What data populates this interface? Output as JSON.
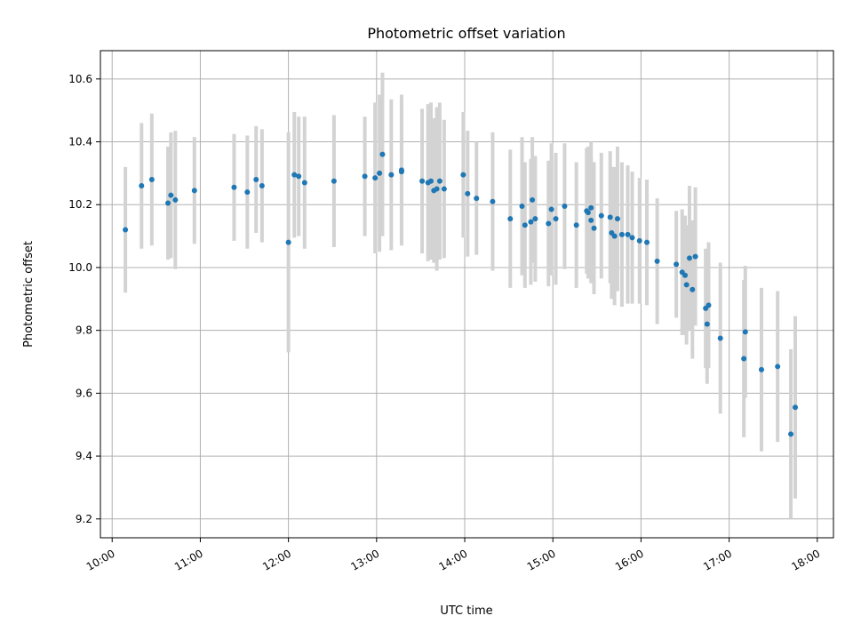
{
  "chart_data": {
    "type": "scatter",
    "title": "Photometric offset variation",
    "xlabel": "UTC time",
    "ylabel": "Photometric offset",
    "x_tick_labels": [
      "10:00",
      "11:00",
      "12:00",
      "13:00",
      "14:00",
      "15:00",
      "16:00",
      "17:00",
      "18:00"
    ],
    "y_tick_labels": [
      "9.2",
      "9.4",
      "9.6",
      "9.8",
      "10.0",
      "10.2",
      "10.4",
      "10.6"
    ],
    "xlim": [
      "09:52",
      "18:11"
    ],
    "ylim": [
      9.14,
      10.69
    ],
    "grid": true,
    "point_color": "#1f77b4",
    "errorbar_color": "#d3d3d3",
    "series": [
      {
        "x": [
          "10:09",
          "10:20",
          "10:27",
          "10:38",
          "10:40",
          "10:43",
          "10:56",
          "11:23",
          "11:32",
          "11:38",
          "11:42",
          "12:00",
          "12:04",
          "12:07",
          "12:11",
          "12:31",
          "12:52",
          "12:59",
          "13:02",
          "13:04",
          "13:10",
          "13:17",
          "13:17",
          "13:31",
          "13:35",
          "13:37",
          "13:39",
          "13:41",
          "13:43",
          "13:46",
          "13:59",
          "14:02",
          "14:08",
          "14:19",
          "14:31",
          "14:39",
          "14:41",
          "14:45",
          "14:46",
          "14:48",
          "14:57",
          "14:59",
          "15:02",
          "15:08",
          "15:16",
          "15:23",
          "15:24",
          "15:26",
          "15:26",
          "15:28",
          "15:33",
          "15:39",
          "15:40",
          "15:42",
          "15:44",
          "15:47",
          "15:51",
          "15:54",
          "15:59",
          "16:04",
          "16:11",
          "16:24",
          "16:28",
          "16:30",
          "16:31",
          "16:33",
          "16:35",
          "16:37",
          "16:44",
          "16:45",
          "16:46",
          "16:54",
          "17:10",
          "17:11",
          "17:22",
          "17:33",
          "17:42",
          "17:45"
        ],
        "y": [
          10.12,
          10.26,
          10.28,
          10.205,
          10.23,
          10.215,
          10.245,
          10.255,
          10.24,
          10.28,
          10.26,
          10.08,
          10.295,
          10.29,
          10.27,
          10.275,
          10.29,
          10.285,
          10.3,
          10.36,
          10.295,
          10.305,
          10.31,
          10.275,
          10.27,
          10.275,
          10.245,
          10.25,
          10.275,
          10.25,
          10.295,
          10.235,
          10.22,
          10.21,
          10.155,
          10.195,
          10.135,
          10.145,
          10.215,
          10.155,
          10.14,
          10.185,
          10.155,
          10.195,
          10.135,
          10.18,
          10.175,
          10.19,
          10.15,
          10.125,
          10.165,
          10.16,
          10.11,
          10.1,
          10.155,
          10.105,
          10.105,
          10.095,
          10.085,
          10.08,
          10.02,
          10.01,
          9.985,
          9.975,
          9.945,
          10.03,
          9.93,
          10.035,
          9.87,
          9.82,
          9.88,
          9.775,
          9.71,
          9.795,
          9.675,
          9.685,
          9.47,
          9.555
        ],
        "yerr": [
          0.2,
          0.2,
          0.21,
          0.18,
          0.2,
          0.22,
          0.17,
          0.17,
          0.18,
          0.17,
          0.18,
          0.35,
          0.2,
          0.19,
          0.21,
          0.21,
          0.19,
          0.24,
          0.25,
          0.26,
          0.24,
          0.23,
          0.24,
          0.23,
          0.25,
          0.25,
          0.23,
          0.26,
          0.25,
          0.22,
          0.2,
          0.2,
          0.18,
          0.22,
          0.22,
          0.22,
          0.2,
          0.2,
          0.2,
          0.2,
          0.2,
          0.21,
          0.21,
          0.2,
          0.2,
          0.2,
          0.21,
          0.21,
          0.2,
          0.21,
          0.2,
          0.21,
          0.21,
          0.22,
          0.23,
          0.23,
          0.22,
          0.21,
          0.2,
          0.2,
          0.2,
          0.17,
          0.2,
          0.19,
          0.19,
          0.23,
          0.22,
          0.22,
          0.19,
          0.19,
          0.2,
          0.24,
          0.25,
          0.21,
          0.26,
          0.24,
          0.27,
          0.29
        ]
      }
    ]
  }
}
